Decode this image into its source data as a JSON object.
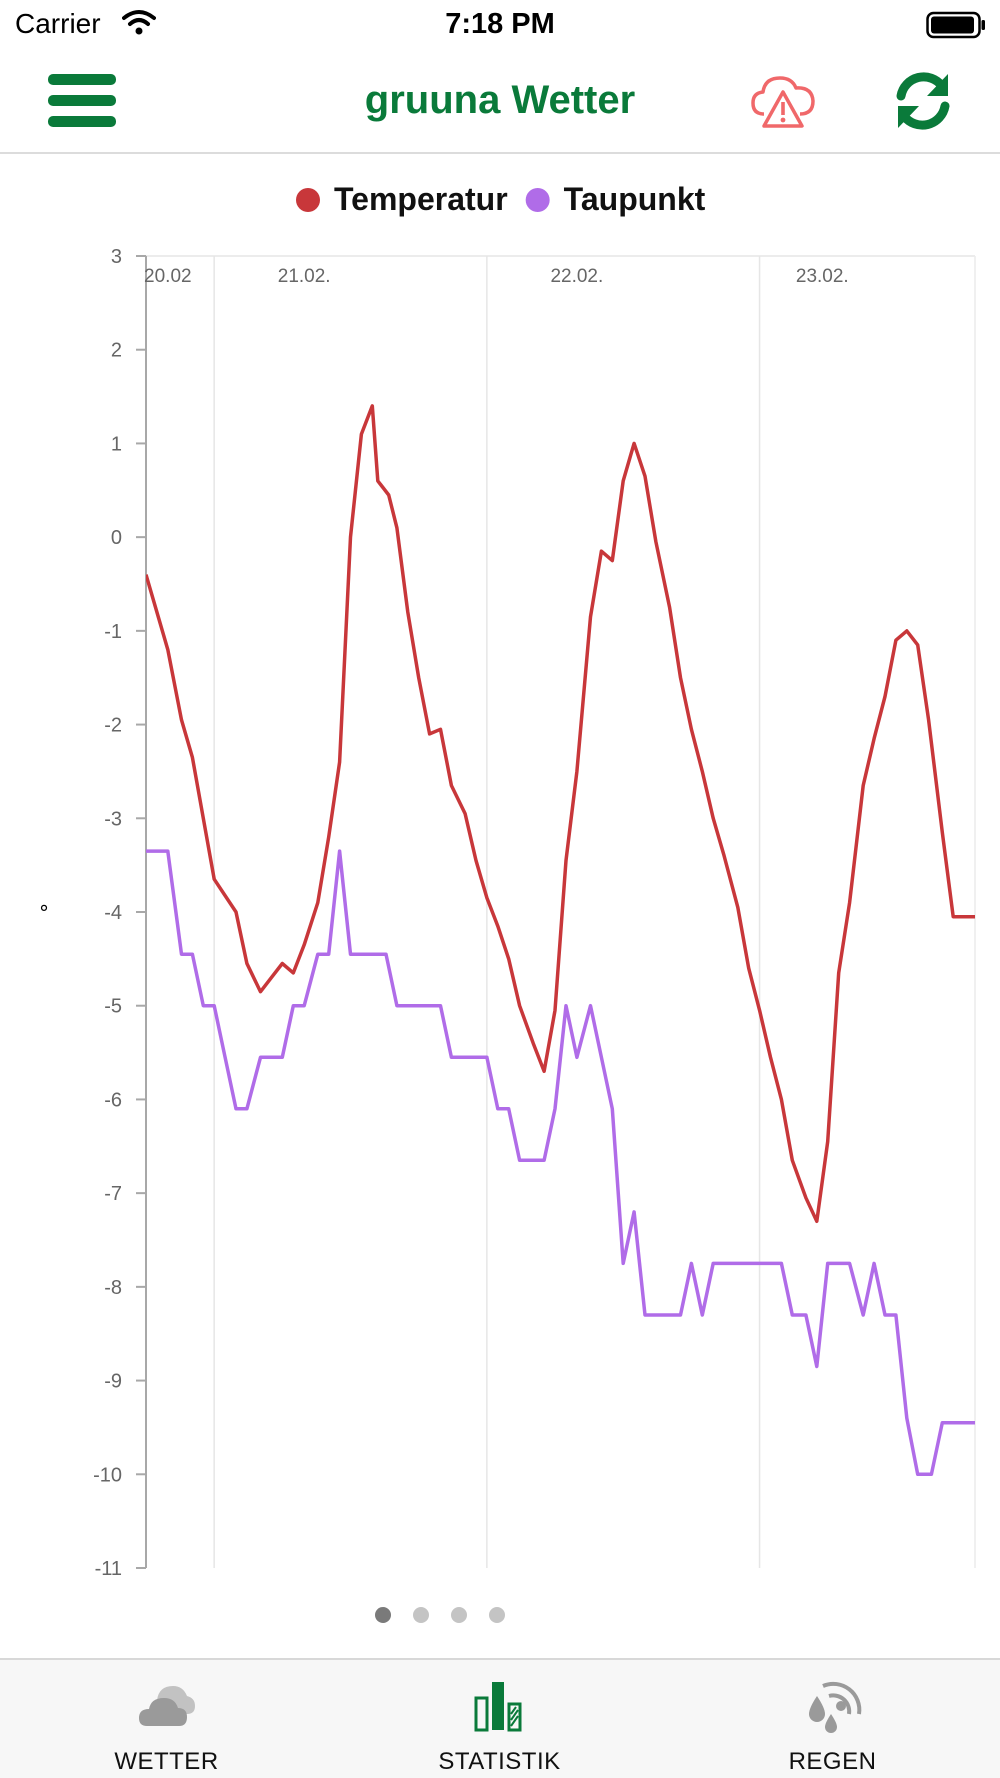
{
  "status_bar": {
    "carrier": "Carrier",
    "time": "7:18 PM",
    "wifi_icon": "wifi-icon",
    "battery_icon": "battery-icon"
  },
  "nav_bar": {
    "title": "gruuna Wetter",
    "menu_icon": "hamburger-menu-icon",
    "warning_icon": "cloud-warning-icon",
    "refresh_icon": "refresh-icon",
    "accent_color": "#0a7a3a",
    "warning_color": "#f0686a"
  },
  "chart_data": {
    "type": "line",
    "title": "",
    "xlabel": "",
    "ylabel": "°",
    "ylim": [
      -11,
      3
    ],
    "yticks": [
      "3",
      "2",
      "1",
      "0",
      "-1",
      "-2",
      "-3",
      "-4",
      "-5",
      "-6",
      "-7",
      "-8",
      "-9",
      "-10",
      "-11"
    ],
    "xlim": [
      20.92,
      23.96
    ],
    "x_tick_labels": [
      {
        "x": 21.0,
        "label": "20.02"
      },
      {
        "x": 21.5,
        "label": "21.02."
      },
      {
        "x": 22.5,
        "label": "22.02."
      },
      {
        "x": 23.4,
        "label": "23.02."
      }
    ],
    "x_gridlines": [
      21.17,
      22.17,
      23.17
    ],
    "grid": true,
    "legend_position": "top-center",
    "series": [
      {
        "name": "Temperatur",
        "color": "#c8373a",
        "x": [
          20.92,
          20.96,
          21.0,
          21.05,
          21.09,
          21.17,
          21.25,
          21.29,
          21.34,
          21.38,
          21.42,
          21.46,
          21.5,
          21.55,
          21.59,
          21.63,
          21.67,
          21.71,
          21.75,
          21.77,
          21.81,
          21.84,
          21.88,
          21.92,
          21.96,
          22.0,
          22.04,
          22.09,
          22.13,
          22.17,
          22.21,
          22.25,
          22.29,
          22.34,
          22.38,
          22.42,
          22.46,
          22.5,
          22.55,
          22.59,
          22.63,
          22.67,
          22.71,
          22.75,
          22.79,
          22.84,
          22.88,
          22.92,
          22.96,
          23.0,
          23.04,
          23.09,
          23.13,
          23.17,
          23.21,
          23.25,
          23.29,
          23.34,
          23.38,
          23.42,
          23.46,
          23.5,
          23.55,
          23.59,
          23.63,
          23.67,
          23.71,
          23.75,
          23.79,
          23.84,
          23.88,
          23.92,
          23.96
        ],
        "y": [
          -0.4,
          -0.8,
          -1.2,
          -1.95,
          -2.35,
          -3.65,
          -4.0,
          -4.55,
          -4.85,
          -4.7,
          -4.55,
          -4.65,
          -4.35,
          -3.9,
          -3.2,
          -2.4,
          0.0,
          1.1,
          1.4,
          0.6,
          0.45,
          0.1,
          -0.8,
          -1.5,
          -2.1,
          -2.05,
          -2.65,
          -2.95,
          -3.45,
          -3.85,
          -4.15,
          -4.5,
          -5.0,
          -5.4,
          -5.7,
          -5.05,
          -3.45,
          -2.5,
          -0.85,
          -0.15,
          -0.25,
          0.6,
          1.0,
          0.65,
          -0.05,
          -0.75,
          -1.5,
          -2.05,
          -2.5,
          -3.0,
          -3.4,
          -3.95,
          -4.6,
          -5.05,
          -5.55,
          -6.0,
          -6.65,
          -7.05,
          -7.3,
          -6.45,
          -4.65,
          -3.9,
          -2.65,
          -2.15,
          -1.7,
          -1.1,
          -1.0,
          -1.15,
          -1.95,
          -3.15,
          -4.05,
          -4.05,
          -4.05
        ]
      },
      {
        "name": "Taupunkt",
        "color": "#b06ce8",
        "x": [
          20.92,
          21.0,
          21.05,
          21.09,
          21.13,
          21.17,
          21.21,
          21.25,
          21.29,
          21.34,
          21.38,
          21.42,
          21.46,
          21.5,
          21.55,
          21.59,
          21.63,
          21.67,
          21.71,
          21.75,
          21.8,
          21.84,
          21.88,
          21.92,
          21.96,
          22.0,
          22.04,
          22.09,
          22.13,
          22.17,
          22.21,
          22.25,
          22.29,
          22.34,
          22.38,
          22.42,
          22.46,
          22.5,
          22.55,
          22.59,
          22.63,
          22.67,
          22.71,
          22.75,
          22.79,
          22.84,
          22.88,
          22.92,
          22.96,
          23.0,
          23.04,
          23.09,
          23.13,
          23.17,
          23.21,
          23.25,
          23.29,
          23.34,
          23.38,
          23.42,
          23.46,
          23.5,
          23.55,
          23.59,
          23.63,
          23.67,
          23.71,
          23.75,
          23.8,
          23.84,
          23.88,
          23.92,
          23.96
        ],
        "y": [
          -3.35,
          -3.35,
          -4.45,
          -4.45,
          -5.0,
          -5.0,
          -5.55,
          -6.1,
          -6.1,
          -5.55,
          -5.55,
          -5.55,
          -5.0,
          -5.0,
          -4.45,
          -4.45,
          -3.35,
          -4.45,
          -4.45,
          -4.45,
          -4.45,
          -5.0,
          -5.0,
          -5.0,
          -5.0,
          -5.0,
          -5.55,
          -5.55,
          -5.55,
          -5.55,
          -6.1,
          -6.1,
          -6.65,
          -6.65,
          -6.65,
          -6.1,
          -5.0,
          -5.55,
          -5.0,
          -5.55,
          -6.1,
          -7.75,
          -7.2,
          -8.3,
          -8.3,
          -8.3,
          -8.3,
          -7.75,
          -8.3,
          -7.75,
          -7.75,
          -7.75,
          -7.75,
          -7.75,
          -7.75,
          -7.75,
          -8.3,
          -8.3,
          -8.85,
          -7.75,
          -7.75,
          -7.75,
          -8.3,
          -7.75,
          -8.3,
          -8.3,
          -9.4,
          -10.0,
          -10.0,
          -9.45,
          -9.45,
          -9.45,
          -9.45
        ]
      }
    ]
  },
  "pager": {
    "page_count": 4,
    "active_index": 0
  },
  "tab_bar": {
    "tabs": [
      {
        "label": "WETTER",
        "icon": "cloud-icon",
        "active": false
      },
      {
        "label": "STATISTIK",
        "icon": "bar-chart-icon",
        "active": true
      },
      {
        "label": "REGEN",
        "icon": "rain-radar-icon",
        "active": false
      }
    ],
    "active_color": "#0a7a3a",
    "inactive_color": "#9a9a9a"
  }
}
